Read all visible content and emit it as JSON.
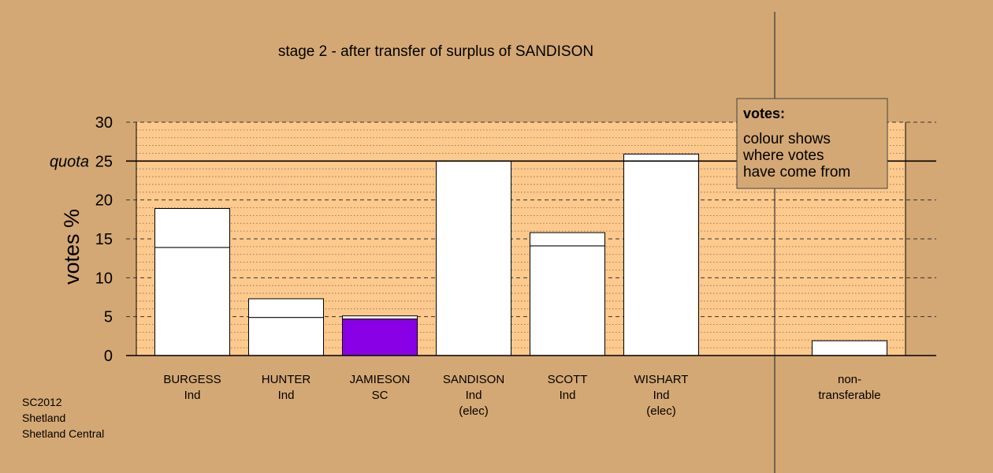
{
  "title": "stage 2 - after transfer of surplus of SANDISON",
  "footer": [
    "SC2012",
    "Shetland",
    "Shetland Central"
  ],
  "colors": {
    "background": "#d4a874",
    "plot_area": "#fdc98d",
    "bar_fill": "#ffffff",
    "highlight_sc": "#8a00e6"
  },
  "legend": {
    "title": "votes:",
    "lines": [
      "colour shows",
      "where votes",
      "have come from"
    ]
  },
  "chart_data": {
    "type": "bar",
    "stacked": true,
    "title": "stage 2 - after transfer of surplus of SANDISON",
    "ylabel": "votes %",
    "ylim": [
      0,
      30
    ],
    "yticks": [
      0,
      5,
      10,
      15,
      20,
      25,
      30
    ],
    "quota": {
      "label": "quota",
      "value": 25
    },
    "grid": true,
    "categories": [
      {
        "lines": [
          "BURGESS",
          "Ind"
        ]
      },
      {
        "lines": [
          "HUNTER",
          "Ind"
        ]
      },
      {
        "lines": [
          "JAMIESON",
          "SC"
        ]
      },
      {
        "lines": [
          "SANDISON",
          "Ind",
          "(elec)"
        ]
      },
      {
        "lines": [
          "SCOTT",
          "Ind"
        ]
      },
      {
        "lines": [
          "WISHART",
          "Ind",
          "(elec)"
        ]
      },
      {
        "lines": [
          "non-",
          "transferable"
        ]
      }
    ],
    "series": [
      {
        "values": [
          13.9,
          4.9,
          4.7,
          25.0,
          14.1,
          25.9,
          1.9
        ],
        "colors": [
          "#ffffff",
          "#ffffff",
          "#8a00e6",
          "#ffffff",
          "#ffffff",
          "#ffffff",
          "#ffffff"
        ]
      },
      {
        "values": [
          5.0,
          2.4,
          0.4,
          0.0,
          1.7,
          0.0,
          0.0
        ],
        "colors": [
          "#ffffff",
          "#ffffff",
          "#ffffff",
          "#ffffff",
          "#ffffff",
          "#ffffff",
          "#ffffff"
        ]
      }
    ]
  }
}
